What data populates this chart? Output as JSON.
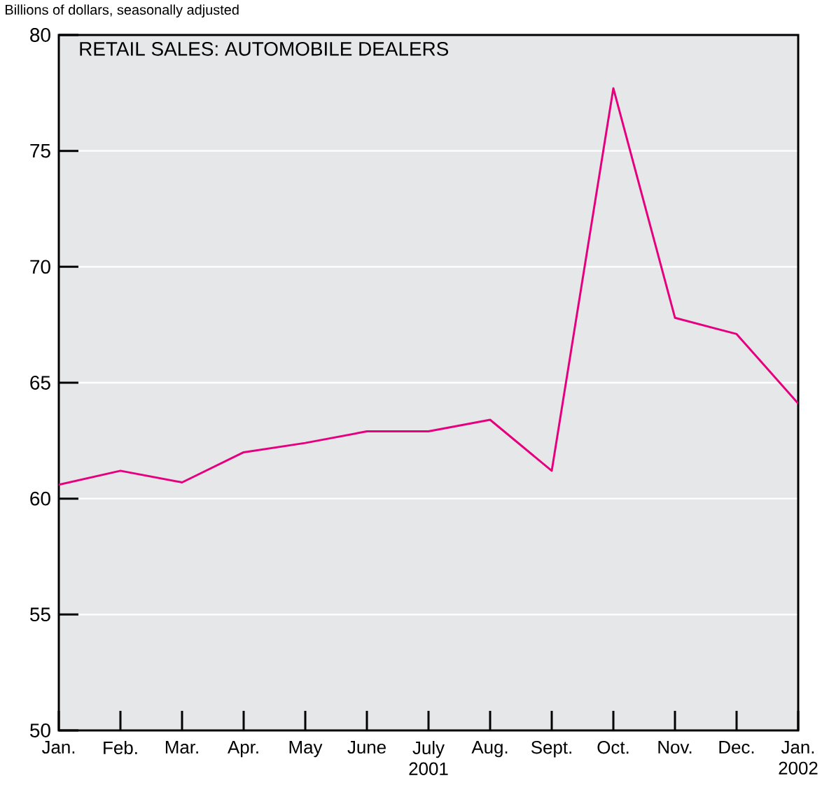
{
  "chart_data": {
    "type": "line",
    "title": "RETAIL SALES: AUTOMOBILE DEALERS",
    "subtitle": "Billions of dollars, seasonally adjusted",
    "categories": [
      "Jan.",
      "Feb.",
      "Mar.",
      "Apr.",
      "May",
      "June",
      "July 2001",
      "Aug.",
      "Sept.",
      "Oct.",
      "Nov.",
      "Dec.",
      "Jan. 2002"
    ],
    "series": [
      {
        "color": "#e6007e",
        "values": [
          60.6,
          61.2,
          60.7,
          62.0,
          62.4,
          62.9,
          62.9,
          63.4,
          61.2,
          77.7,
          67.8,
          67.1,
          64.1
        ]
      }
    ],
    "ylim": [
      50,
      80
    ],
    "yticks": [
      50,
      55,
      60,
      65,
      70,
      75,
      80
    ],
    "grid": "y",
    "marker": "none",
    "line_style": "solid"
  }
}
